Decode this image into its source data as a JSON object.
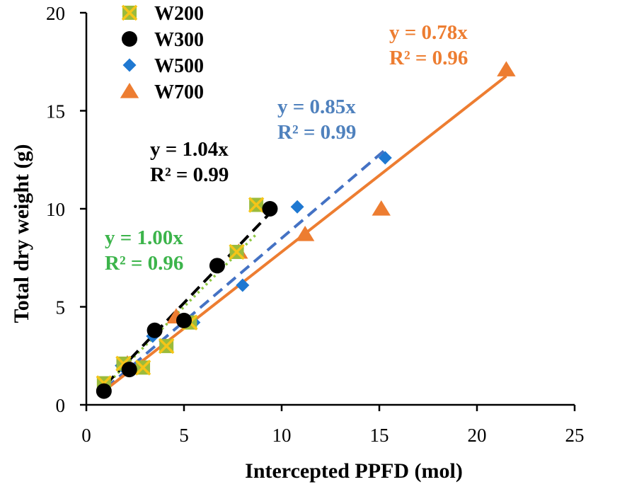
{
  "chart_data": {
    "type": "scatter",
    "xlabel": "Intercepted PPFD (mol)",
    "ylabel": "Total dry weight (g)",
    "xlim": [
      0,
      25
    ],
    "ylim": [
      0,
      20
    ],
    "xticks": [
      "0",
      "5",
      "10",
      "15",
      "20",
      "25"
    ],
    "yticks": [
      "0",
      "5",
      "10",
      "15",
      "20"
    ],
    "legend_position": "top-left",
    "series": [
      {
        "name": "W200",
        "marker": "square-x",
        "color": "#9BBB3B",
        "cross_color": "#F5C518",
        "line_style": "dotted",
        "line_color": "#8DC63F",
        "equation": "y = 1.00x",
        "r2": "R² = 0.96",
        "label_color": "#3CB44B",
        "slope": 1.0,
        "line_x": [
          1.0,
          8.7
        ],
        "points": [
          [
            0.9,
            1.1
          ],
          [
            1.9,
            2.1
          ],
          [
            2.9,
            1.9
          ],
          [
            4.1,
            3.0
          ],
          [
            5.3,
            4.2
          ],
          [
            7.7,
            7.8
          ],
          [
            8.7,
            10.2
          ]
        ]
      },
      {
        "name": "W300",
        "marker": "circle",
        "color": "#000000",
        "line_style": "dashed",
        "line_color": "#000000",
        "equation": "y = 1.04x",
        "r2": "R² = 0.99",
        "label_color": "#000000",
        "slope": 1.04,
        "line_x": [
          1.0,
          9.6
        ],
        "points": [
          [
            0.9,
            0.7
          ],
          [
            2.2,
            1.8
          ],
          [
            3.5,
            3.8
          ],
          [
            5.0,
            4.3
          ],
          [
            6.7,
            7.1
          ],
          [
            9.4,
            10.0
          ]
        ]
      },
      {
        "name": "W500",
        "marker": "diamond",
        "color": "#1F78D1",
        "line_style": "dashed",
        "line_color": "#4472C4",
        "equation": "y = 0.85x",
        "r2": "R² = 0.99",
        "label_color": "#4F81BD",
        "slope": 0.85,
        "line_x": [
          1.0,
          15.4
        ],
        "points": [
          [
            0.9,
            1.0
          ],
          [
            1.8,
            2.0
          ],
          [
            3.4,
            3.5
          ],
          [
            5.5,
            4.2
          ],
          [
            8.0,
            6.1
          ],
          [
            10.8,
            10.1
          ],
          [
            15.3,
            12.6
          ]
        ]
      },
      {
        "name": "W700",
        "marker": "triangle",
        "color": "#ED7D31",
        "line_style": "solid",
        "line_color": "#ED7D31",
        "equation": "y = 0.78x",
        "r2": "R² = 0.96",
        "label_color": "#ED7D31",
        "slope": 0.78,
        "line_x": [
          1.0,
          21.5
        ],
        "points": [
          [
            2.1,
            2.1
          ],
          [
            4.6,
            4.5
          ],
          [
            7.8,
            7.8
          ],
          [
            11.2,
            8.7
          ],
          [
            15.1,
            10.0
          ],
          [
            21.5,
            17.1
          ]
        ]
      }
    ]
  }
}
